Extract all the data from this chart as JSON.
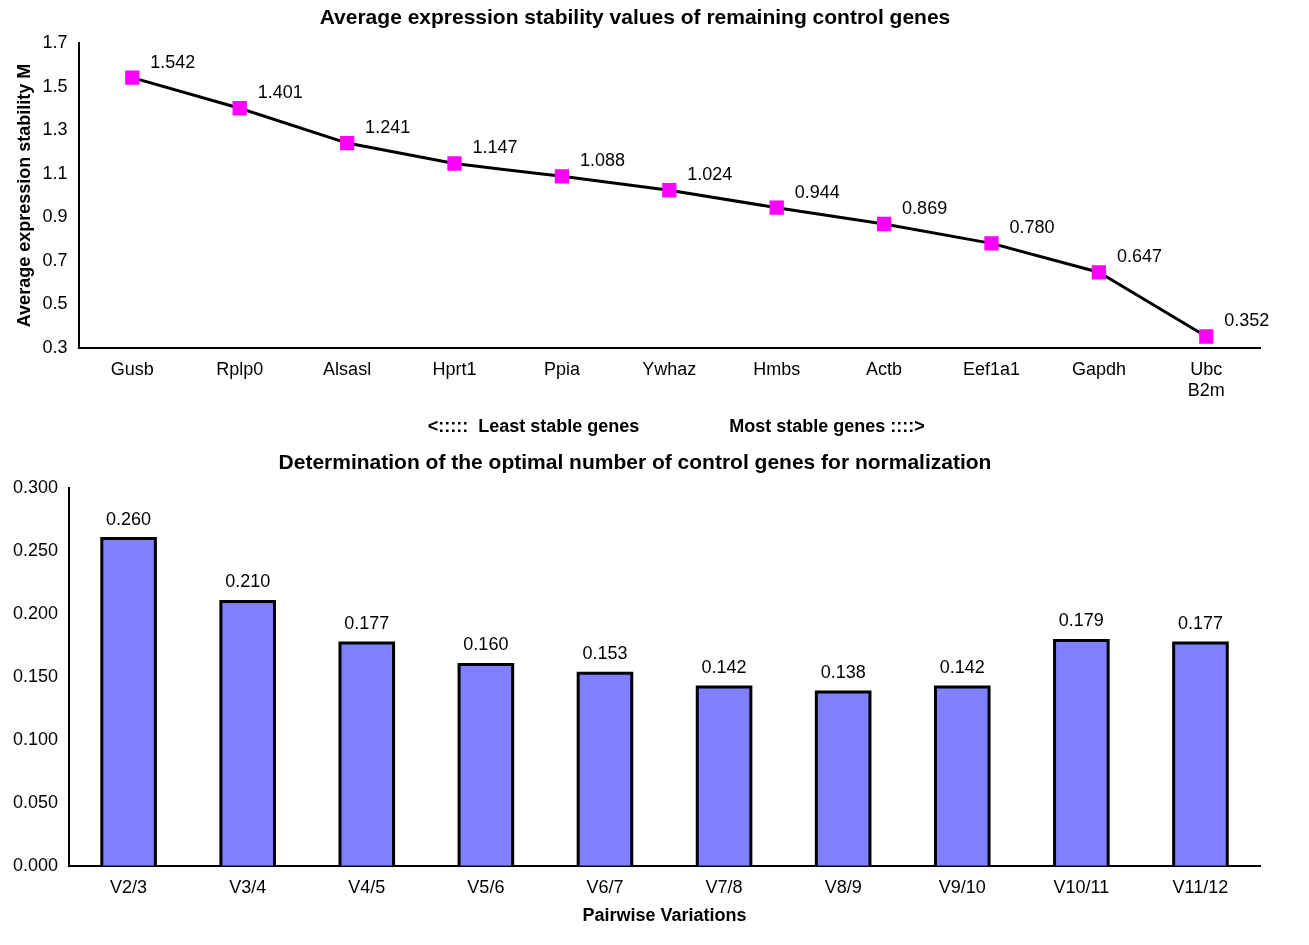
{
  "chart_data": [
    {
      "type": "line",
      "title": "Average expression stability values of remaining control genes",
      "ylabel": "Average expression stability M",
      "categories": [
        "Gusb",
        "Rplp0",
        "Alsasl",
        "Hprt1",
        "Ppia",
        "Ywhaz",
        "Hmbs",
        "Actb",
        "Eef1a1",
        "Gapdh",
        "Ubc\nB2m"
      ],
      "series": [
        {
          "color": "#000000",
          "colors": [
            "#ff00ff",
            "#ff00ff",
            "#ff00ff",
            "#ff00ff",
            "#ff00ff",
            "#ff00ff",
            "#ff00ff",
            "#ff00ff",
            "#ff00ff",
            "#ff00ff",
            "#ff00ff"
          ],
          "values": [
            1.542,
            1.401,
            1.241,
            1.147,
            1.088,
            1.024,
            0.944,
            0.869,
            0.78,
            0.647,
            0.352
          ],
          "value_labels": [
            "1.542",
            "1.401",
            "1.241",
            "1.147",
            "1.088",
            "1.024",
            "0.944",
            "0.869",
            "0.780",
            "0.647",
            "0.352"
          ]
        }
      ],
      "ylim": [
        0.3,
        1.7
      ],
      "yticks": [
        0.3,
        0.5,
        0.7,
        0.9,
        1.1,
        1.3,
        1.5,
        1.7
      ],
      "marker": "square",
      "line_style": "solid",
      "grid": false,
      "legend": false,
      "annotations": [
        "<:::::  Least stable genes",
        "Most stable genes ::::>"
      ]
    },
    {
      "type": "bar",
      "title": "Determination of the optimal number of control genes for normalization",
      "xlabel": "Pairwise Variations",
      "categories": [
        "V2/3",
        "V3/4",
        "V4/5",
        "V5/6",
        "V6/7",
        "V7/8",
        "V8/9",
        "V9/10",
        "V10/11",
        "V11/12"
      ],
      "series": [
        {
          "color": "#8080ff",
          "values": [
            0.26,
            0.21,
            0.177,
            0.16,
            0.153,
            0.142,
            0.138,
            0.142,
            0.179,
            0.177
          ],
          "value_labels": [
            "0.260",
            "0.210",
            "0.177",
            "0.160",
            "0.153",
            "0.142",
            "0.138",
            "0.142",
            "0.179",
            "0.177"
          ]
        }
      ],
      "ylim": [
        0,
        0.3
      ],
      "yticks": [
        {
          "value": 0,
          "label": "0.000"
        },
        {
          "value": 0.05,
          "label": "0.050"
        },
        {
          "value": 0.1,
          "label": "0.100"
        },
        {
          "value": 0.15,
          "label": "0.150"
        },
        {
          "value": 0.2,
          "label": "0.200"
        },
        {
          "value": 0.25,
          "label": "0.250"
        },
        {
          "value": 0.3,
          "label": "0.300"
        }
      ],
      "grid": false,
      "legend": false
    }
  ]
}
